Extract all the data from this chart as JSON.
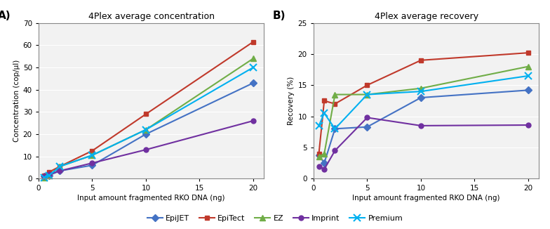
{
  "title_A": "4Plex average concentration",
  "title_B": "4Plex average recovery",
  "xlabel": "Input amount fragmented RKO DNA (ng)",
  "ylabel_A": "Concentration (cop/µl)",
  "ylabel_B": "Recovery (%)",
  "x_A": [
    0.5,
    1,
    2,
    5,
    10,
    20
  ],
  "x_B": [
    0.5,
    1,
    2,
    5,
    10,
    20
  ],
  "series": {
    "EpiJET": {
      "color": "#4472C4",
      "marker": "D",
      "conc": [
        1.0,
        1.5,
        3.5,
        6.0,
        20.0,
        43.0
      ],
      "rec": [
        3.8,
        2.5,
        8.0,
        8.3,
        13.0,
        14.2
      ]
    },
    "EpiTect": {
      "color": "#C0392B",
      "marker": "s",
      "conc": [
        1.5,
        3.0,
        5.5,
        12.5,
        29.0,
        61.5
      ],
      "rec": [
        4.0,
        12.5,
        12.0,
        15.0,
        19.0,
        20.2
      ]
    },
    "EZ": {
      "color": "#70AD47",
      "marker": "^",
      "conc": [
        0.5,
        1.5,
        5.5,
        10.5,
        22.0,
        54.0
      ],
      "rec": [
        3.5,
        4.0,
        13.5,
        13.5,
        14.5,
        18.0
      ]
    },
    "Imprint": {
      "color": "#7030A0",
      "marker": "o",
      "conc": [
        1.0,
        2.0,
        3.5,
        7.0,
        13.0,
        26.0
      ],
      "rec": [
        2.0,
        1.5,
        4.5,
        9.8,
        8.5,
        8.6
      ]
    },
    "Premium": {
      "color": "#00B0F0",
      "marker": "x",
      "conc": [
        0.5,
        1.5,
        5.5,
        10.5,
        22.0,
        50.0
      ],
      "rec": [
        8.5,
        10.5,
        8.0,
        13.5,
        14.0,
        16.5
      ]
    }
  },
  "ylim_A": [
    0,
    70
  ],
  "ylim_B": [
    0,
    25
  ],
  "yticks_A": [
    0,
    10,
    20,
    30,
    40,
    50,
    60,
    70
  ],
  "yticks_B": [
    0,
    5,
    10,
    15,
    20,
    25
  ],
  "xticks": [
    0,
    5,
    10,
    15,
    20
  ],
  "xlim": [
    0,
    21
  ],
  "bg_color": "#FFFFFF",
  "plot_bg": "#F2F2F2",
  "grid_color": "#FFFFFF"
}
